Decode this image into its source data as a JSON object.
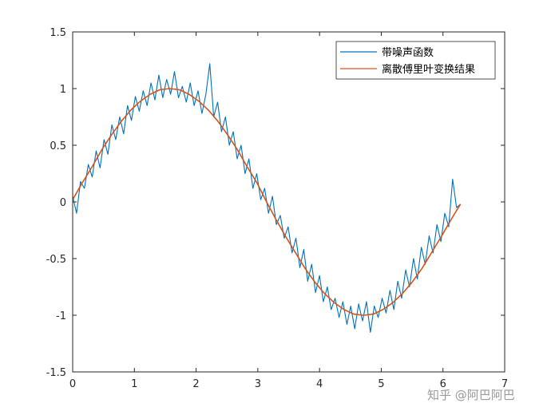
{
  "chart_data": {
    "type": "line",
    "title": "",
    "xlabel": "",
    "ylabel": "",
    "xlim": [
      0,
      7
    ],
    "ylim": [
      -1.5,
      1.5
    ],
    "x_ticks": [
      "0",
      "1",
      "2",
      "3",
      "4",
      "5",
      "6",
      "7"
    ],
    "y_ticks": [
      "1.5",
      "1",
      "0.5",
      "0",
      "-0.5",
      "-1",
      "-1.5"
    ],
    "grid": false,
    "legend_position": "top-right",
    "series": [
      {
        "name": "带噪声函数",
        "color": "#0072BD",
        "x": [
          0.0,
          0.063,
          0.127,
          0.19,
          0.254,
          0.317,
          0.381,
          0.444,
          0.508,
          0.571,
          0.635,
          0.698,
          0.762,
          0.825,
          0.889,
          0.952,
          1.016,
          1.079,
          1.143,
          1.206,
          1.269,
          1.333,
          1.396,
          1.46,
          1.523,
          1.587,
          1.65,
          1.714,
          1.777,
          1.841,
          1.904,
          1.968,
          2.031,
          2.095,
          2.158,
          2.222,
          2.285,
          2.348,
          2.412,
          2.475,
          2.539,
          2.602,
          2.666,
          2.729,
          2.793,
          2.856,
          2.92,
          2.983,
          3.047,
          3.11,
          3.173,
          3.237,
          3.3,
          3.364,
          3.427,
          3.491,
          3.554,
          3.618,
          3.681,
          3.745,
          3.808,
          3.872,
          3.935,
          3.999,
          4.062,
          4.126,
          4.189,
          4.252,
          4.316,
          4.379,
          4.443,
          4.506,
          4.57,
          4.633,
          4.697,
          4.76,
          4.824,
          4.887,
          4.951,
          5.014,
          5.078,
          5.141,
          5.204,
          5.268,
          5.331,
          5.395,
          5.458,
          5.522,
          5.585,
          5.649,
          5.712,
          5.776,
          5.839,
          5.903,
          5.966,
          6.03,
          6.093,
          6.157,
          6.22,
          6.283
        ],
        "y": [
          0.05,
          -0.1,
          0.18,
          0.12,
          0.33,
          0.22,
          0.45,
          0.3,
          0.55,
          0.42,
          0.68,
          0.55,
          0.75,
          0.6,
          0.85,
          0.72,
          0.93,
          0.8,
          0.98,
          0.85,
          1.05,
          0.9,
          1.12,
          0.92,
          1.08,
          0.95,
          1.15,
          0.92,
          1.02,
          0.88,
          1.05,
          0.85,
          0.98,
          0.78,
          0.95,
          1.22,
          0.75,
          0.88,
          0.62,
          0.75,
          0.5,
          0.62,
          0.38,
          0.5,
          0.25,
          0.38,
          0.12,
          0.25,
          0.02,
          0.12,
          -0.1,
          0.05,
          -0.2,
          -0.12,
          -0.32,
          -0.22,
          -0.45,
          -0.32,
          -0.58,
          -0.42,
          -0.7,
          -0.55,
          -0.8,
          -0.65,
          -0.88,
          -0.75,
          -0.95,
          -0.85,
          -1.02,
          -0.88,
          -1.08,
          -0.92,
          -1.12,
          -0.9,
          -1.05,
          -0.88,
          -1.15,
          -0.92,
          -1.02,
          -0.85,
          -0.98,
          -0.78,
          -0.95,
          -0.7,
          -0.85,
          -0.6,
          -0.75,
          -0.5,
          -0.68,
          -0.4,
          -0.55,
          -0.3,
          -0.45,
          -0.2,
          -0.35,
          -0.1,
          -0.22,
          0.2,
          -0.05,
          -0.02
        ]
      },
      {
        "name": "离散傅里叶变换结果",
        "color": "#D95319",
        "x": [
          0.0,
          0.157,
          0.314,
          0.471,
          0.628,
          0.785,
          0.942,
          1.1,
          1.257,
          1.414,
          1.571,
          1.728,
          1.885,
          2.042,
          2.199,
          2.356,
          2.513,
          2.67,
          2.827,
          2.985,
          3.142,
          3.299,
          3.456,
          3.613,
          3.77,
          3.927,
          4.084,
          4.241,
          4.398,
          4.555,
          4.712,
          4.869,
          5.027,
          5.184,
          5.341,
          5.498,
          5.655,
          5.812,
          5.969,
          6.126,
          6.283
        ],
        "y": [
          0.02,
          0.17,
          0.31,
          0.46,
          0.59,
          0.71,
          0.81,
          0.89,
          0.95,
          0.99,
          1.0,
          0.99,
          0.95,
          0.89,
          0.81,
          0.71,
          0.59,
          0.46,
          0.31,
          0.17,
          0.0,
          -0.16,
          -0.31,
          -0.45,
          -0.59,
          -0.71,
          -0.81,
          -0.89,
          -0.95,
          -0.99,
          -1.0,
          -0.99,
          -0.95,
          -0.89,
          -0.81,
          -0.71,
          -0.59,
          -0.45,
          -0.31,
          -0.16,
          -0.02
        ]
      }
    ]
  },
  "watermark": "知乎 @阿巴阿巴"
}
